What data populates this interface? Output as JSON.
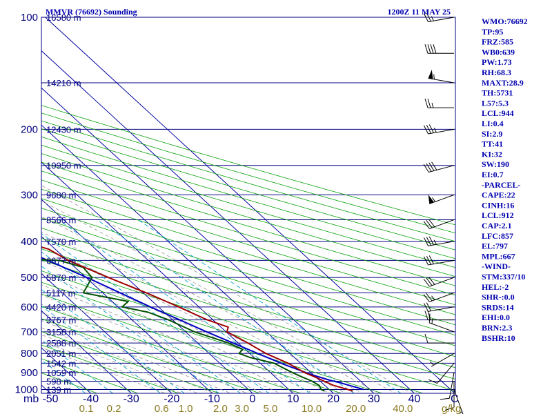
{
  "title_left": "MMVR (76692) Sounding",
  "title_right": "1200Z 11 MAY 25",
  "colors": {
    "isobar": "#000080",
    "isotherm": "#0000a0",
    "dry_adiabat": "#00a000",
    "moist_adiabat": "#909090",
    "mixing_ratio": "#00a0c0",
    "temperature": "#a00000",
    "dewpoint": "#005000",
    "parcel": "#0000c0",
    "wind": "#000000",
    "text": "#0000b0"
  },
  "chart_data": {
    "type": "skew-t",
    "y_axis_label": "mb",
    "pressure_levels": [
      100,
      200,
      300,
      400,
      500,
      600,
      700,
      800,
      900,
      1000
    ],
    "height_labels": [
      {
        "p": 100,
        "label": "16580 m"
      },
      {
        "p": 150,
        "label": "14210 m"
      },
      {
        "p": 200,
        "label": "12430 m"
      },
      {
        "p": 250,
        "label": "10950 m"
      },
      {
        "p": 300,
        "label": "9680 m"
      },
      {
        "p": 350,
        "label": "8566 m"
      },
      {
        "p": 400,
        "label": "7570 m"
      },
      {
        "p": 450,
        "label": "6677 m"
      },
      {
        "p": 500,
        "label": "5870 m"
      },
      {
        "p": 550,
        "label": "5117 m"
      },
      {
        "p": 600,
        "label": "4420 m"
      },
      {
        "p": 650,
        "label": "3767 m"
      },
      {
        "p": 700,
        "label": "3158 m"
      },
      {
        "p": 750,
        "label": "2588 m"
      },
      {
        "p": 800,
        "label": "2051 m"
      },
      {
        "p": 850,
        "label": "1542 m"
      },
      {
        "p": 900,
        "label": "1059 m"
      },
      {
        "p": 950,
        "label": "598 m"
      },
      {
        "p": 1000,
        "label": "139 m"
      }
    ],
    "temperature_ticks": [
      "-50",
      "-40",
      "-30",
      "-20",
      "-10",
      "0",
      "10",
      "20",
      "30",
      "40"
    ],
    "temperature_unit": "C",
    "mixing_ratio_labels": [
      "0.1",
      "0.2",
      "0.6",
      "1.0",
      "2.0",
      "3.0",
      "5.0",
      "10.0",
      "20.0",
      "40.0"
    ],
    "mixing_ratio_unit": "g/kg",
    "temperature_profile": [
      [
        1010,
        25.4
      ],
      [
        1000,
        24.6
      ],
      [
        975,
        22.2
      ],
      [
        950,
        21.0
      ],
      [
        925,
        19.8
      ],
      [
        900,
        18.4
      ],
      [
        850,
        16.9
      ],
      [
        800,
        14.0
      ],
      [
        750,
        12.4
      ],
      [
        700,
        10.2
      ],
      [
        680,
        11.8
      ],
      [
        650,
        8.6
      ],
      [
        600,
        5.0
      ],
      [
        550,
        0.8
      ],
      [
        500,
        -4.5
      ],
      [
        450,
        -9.8
      ],
      [
        420,
        -11.6
      ],
      [
        400,
        -16.0
      ],
      [
        350,
        -23.6
      ],
      [
        300,
        -33.0
      ],
      [
        250,
        -42.6
      ],
      [
        200,
        -54.0
      ],
      [
        150,
        -65.0
      ],
      [
        120,
        -70.0
      ],
      [
        100,
        -72.0
      ]
    ],
    "dewpoint_profile": [
      [
        1010,
        18.4
      ],
      [
        1000,
        18.0
      ],
      [
        975,
        18.6
      ],
      [
        950,
        18.0
      ],
      [
        925,
        16.6
      ],
      [
        900,
        15.4
      ],
      [
        850,
        13.4
      ],
      [
        820,
        9.0
      ],
      [
        800,
        7.4
      ],
      [
        780,
        9.4
      ],
      [
        750,
        7.6
      ],
      [
        700,
        2.2
      ],
      [
        650,
        -1.0
      ],
      [
        620,
        -4.0
      ],
      [
        600,
        -9.0
      ],
      [
        580,
        -6.0
      ],
      [
        550,
        -14.8
      ],
      [
        500,
        -8.5
      ],
      [
        470,
        -8.0
      ],
      [
        450,
        -12.0
      ],
      [
        430,
        -50.0
      ],
      [
        400,
        -40.0
      ],
      [
        350,
        -39.0
      ],
      [
        300,
        -43.0
      ],
      [
        280,
        -40.0
      ],
      [
        250,
        -62.0
      ],
      [
        200,
        -67.0
      ],
      [
        150,
        -80.0
      ],
      [
        120,
        -83.0
      ],
      [
        100,
        -88.0
      ]
    ],
    "parcel_profile": [
      [
        1000,
        28.5
      ],
      [
        960,
        24.6
      ],
      [
        944,
        22.6
      ],
      [
        912,
        19.6
      ],
      [
        857,
        15.6
      ],
      [
        800,
        12.0
      ],
      [
        700,
        5.2
      ],
      [
        600,
        -2.0
      ],
      [
        500,
        -9.8
      ],
      [
        400,
        -20.5
      ],
      [
        300,
        -36.0
      ],
      [
        250,
        -46.0
      ],
      [
        200,
        -58.0
      ],
      [
        150,
        -72.0
      ],
      [
        120,
        -79.0
      ]
    ],
    "wind_barbs": [
      {
        "p": 1000,
        "dir": 160,
        "spd": 5
      },
      {
        "p": 950,
        "dir": 180,
        "spd": 10
      },
      {
        "p": 900,
        "dir": 190,
        "spd": 10
      },
      {
        "p": 850,
        "dir": 220,
        "spd": 10
      },
      {
        "p": 800,
        "dir": 240,
        "spd": 5
      },
      {
        "p": 750,
        "dir": 270,
        "spd": 10
      },
      {
        "p": 700,
        "dir": 290,
        "spd": 15
      },
      {
        "p": 650,
        "dir": 270,
        "spd": 20
      },
      {
        "p": 600,
        "dir": 260,
        "spd": 20
      },
      {
        "p": 550,
        "dir": 250,
        "spd": 25
      },
      {
        "p": 500,
        "dir": 250,
        "spd": 30
      },
      {
        "p": 450,
        "dir": 260,
        "spd": 30
      },
      {
        "p": 400,
        "dir": 260,
        "spd": 35
      },
      {
        "p": 350,
        "dir": 250,
        "spd": 30
      },
      {
        "p": 300,
        "dir": 250,
        "spd": 55
      },
      {
        "p": 250,
        "dir": 255,
        "spd": 40
      },
      {
        "p": 200,
        "dir": 260,
        "spd": 35
      },
      {
        "p": 175,
        "dir": 270,
        "spd": 25
      },
      {
        "p": 150,
        "dir": 280,
        "spd": 55
      },
      {
        "p": 125,
        "dir": 270,
        "spd": 40
      },
      {
        "p": 100,
        "dir": 260,
        "spd": 25
      }
    ]
  },
  "indices": [
    "WMO:76692",
    "TP:95",
    "FRZ:585",
    "WB0:639",
    "PW:1.73",
    "RH:68.3",
    "MAXT:28.9",
    "TH:5731",
    "L57:5.3",
    "LCL:944",
    "LI:0.4",
    "SI:2.9",
    "TT:41",
    "KI:32",
    "SW:190",
    "EI:0.7",
    "-PARCEL-",
    "CAPE:22",
    "CINH:16",
    "LCL:912",
    "CAP:2.1",
    "LFC:857",
    "EL:797",
    "MPL:667",
    "-WIND-",
    "STM:337/10",
    "HEL:-2",
    "SHR-:0.0",
    "SRDS:14",
    "EHI:0.0",
    "BRN:2.3",
    "BSHR:10"
  ]
}
